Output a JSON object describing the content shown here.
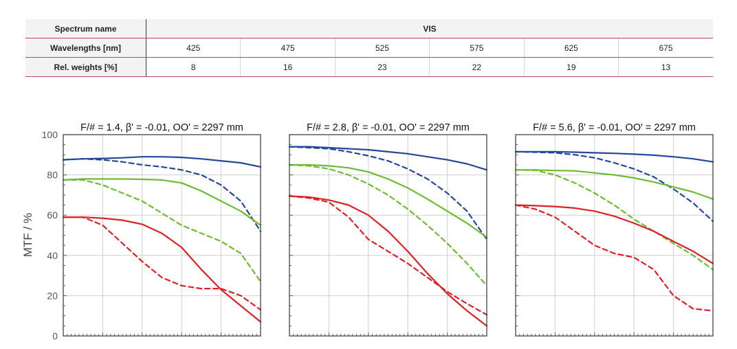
{
  "spectrum_table": {
    "row_labels": {
      "spectrum": "Spectrum name",
      "wavelengths": "Wavelengths [nm]",
      "weights": "Rel. weights [%]"
    },
    "spectrum_value": "VIS",
    "wavelengths": [
      "425",
      "475",
      "525",
      "575",
      "625",
      "675"
    ],
    "weights": [
      "8",
      "16",
      "23",
      "22",
      "19",
      "13"
    ]
  },
  "chart_data": {
    "type": "line",
    "ylabel": "MTF / %",
    "ylim": [
      0,
      100
    ],
    "yticks": [
      "0",
      "20",
      "40",
      "60",
      "80",
      "100"
    ],
    "grid": true,
    "colors": {
      "blue": "#23479a",
      "green": "#6cbb30",
      "red": "#e01f25"
    },
    "panels": [
      {
        "title": "F/# = 1.4, β' = -0.01, OO' = 2297 mm",
        "series": [
          {
            "color": "blue",
            "dash": false,
            "values": [
              [
                0,
                87.5
              ],
              [
                0.1,
                88
              ],
              [
                0.2,
                88.2
              ],
              [
                0.3,
                88.5
              ],
              [
                0.4,
                89
              ],
              [
                0.5,
                89
              ],
              [
                0.6,
                88.7
              ],
              [
                0.7,
                88
              ],
              [
                0.8,
                87
              ],
              [
                0.9,
                86
              ],
              [
                1.0,
                84
              ]
            ]
          },
          {
            "color": "blue",
            "dash": true,
            "values": [
              [
                0,
                87.5
              ],
              [
                0.1,
                88
              ],
              [
                0.2,
                87.5
              ],
              [
                0.3,
                86.5
              ],
              [
                0.4,
                85
              ],
              [
                0.5,
                84
              ],
              [
                0.6,
                82.5
              ],
              [
                0.7,
                80
              ],
              [
                0.8,
                75
              ],
              [
                0.9,
                67
              ],
              [
                1.0,
                52
              ]
            ]
          },
          {
            "color": "green",
            "dash": false,
            "values": [
              [
                0,
                77.5
              ],
              [
                0.1,
                78
              ],
              [
                0.2,
                78
              ],
              [
                0.3,
                78
              ],
              [
                0.4,
                77.8
              ],
              [
                0.5,
                77.5
              ],
              [
                0.6,
                76
              ],
              [
                0.7,
                72
              ],
              [
                0.8,
                67
              ],
              [
                0.9,
                62
              ],
              [
                1.0,
                55
              ]
            ]
          },
          {
            "color": "green",
            "dash": true,
            "values": [
              [
                0,
                77.5
              ],
              [
                0.1,
                77.5
              ],
              [
                0.2,
                75
              ],
              [
                0.3,
                71
              ],
              [
                0.4,
                67
              ],
              [
                0.5,
                61
              ],
              [
                0.6,
                55
              ],
              [
                0.7,
                51
              ],
              [
                0.8,
                47
              ],
              [
                0.9,
                41
              ],
              [
                1.0,
                27
              ]
            ]
          },
          {
            "color": "red",
            "dash": false,
            "values": [
              [
                0,
                59
              ],
              [
                0.1,
                59
              ],
              [
                0.2,
                58.5
              ],
              [
                0.3,
                57.5
              ],
              [
                0.4,
                55.5
              ],
              [
                0.5,
                51
              ],
              [
                0.6,
                44
              ],
              [
                0.7,
                33
              ],
              [
                0.8,
                23
              ],
              [
                0.9,
                15
              ],
              [
                1.0,
                7
              ]
            ]
          },
          {
            "color": "red",
            "dash": true,
            "values": [
              [
                0,
                59
              ],
              [
                0.1,
                59
              ],
              [
                0.2,
                55
              ],
              [
                0.3,
                46
              ],
              [
                0.4,
                37
              ],
              [
                0.5,
                29
              ],
              [
                0.6,
                25
              ],
              [
                0.7,
                23.5
              ],
              [
                0.8,
                23.5
              ],
              [
                0.9,
                20
              ],
              [
                1.0,
                13
              ]
            ]
          }
        ]
      },
      {
        "title": "F/# = 2.8, β' = -0.01, OO' = 2297 mm",
        "series": [
          {
            "color": "blue",
            "dash": false,
            "values": [
              [
                0,
                94
              ],
              [
                0.1,
                94
              ],
              [
                0.2,
                93.5
              ],
              [
                0.3,
                93
              ],
              [
                0.4,
                92.5
              ],
              [
                0.5,
                91.5
              ],
              [
                0.6,
                90.5
              ],
              [
                0.7,
                89
              ],
              [
                0.8,
                87.5
              ],
              [
                0.9,
                85.5
              ],
              [
                1.0,
                82.5
              ]
            ]
          },
          {
            "color": "blue",
            "dash": true,
            "values": [
              [
                0,
                94
              ],
              [
                0.1,
                93.5
              ],
              [
                0.2,
                93
              ],
              [
                0.3,
                91.5
              ],
              [
                0.4,
                89.5
              ],
              [
                0.5,
                87
              ],
              [
                0.6,
                83
              ],
              [
                0.7,
                78
              ],
              [
                0.8,
                71
              ],
              [
                0.9,
                62
              ],
              [
                1.0,
                48
              ]
            ]
          },
          {
            "color": "green",
            "dash": false,
            "values": [
              [
                0,
                85
              ],
              [
                0.1,
                85
              ],
              [
                0.2,
                84.5
              ],
              [
                0.3,
                83.5
              ],
              [
                0.4,
                81.5
              ],
              [
                0.5,
                78
              ],
              [
                0.6,
                73.5
              ],
              [
                0.7,
                68
              ],
              [
                0.8,
                62
              ],
              [
                0.9,
                56
              ],
              [
                1.0,
                49
              ]
            ]
          },
          {
            "color": "green",
            "dash": true,
            "values": [
              [
                0,
                85
              ],
              [
                0.1,
                84.5
              ],
              [
                0.2,
                83
              ],
              [
                0.3,
                80
              ],
              [
                0.4,
                75.5
              ],
              [
                0.5,
                70
              ],
              [
                0.6,
                63
              ],
              [
                0.7,
                55
              ],
              [
                0.8,
                46
              ],
              [
                0.9,
                36
              ],
              [
                1.0,
                25
              ]
            ]
          },
          {
            "color": "red",
            "dash": false,
            "values": [
              [
                0,
                69.5
              ],
              [
                0.1,
                69
              ],
              [
                0.2,
                67.5
              ],
              [
                0.3,
                65
              ],
              [
                0.4,
                60
              ],
              [
                0.5,
                52
              ],
              [
                0.6,
                42
              ],
              [
                0.7,
                31
              ],
              [
                0.8,
                21
              ],
              [
                0.9,
                12.5
              ],
              [
                1.0,
                5
              ]
            ]
          },
          {
            "color": "red",
            "dash": true,
            "values": [
              [
                0,
                69.5
              ],
              [
                0.1,
                68.5
              ],
              [
                0.2,
                66.5
              ],
              [
                0.3,
                59
              ],
              [
                0.4,
                48
              ],
              [
                0.5,
                42
              ],
              [
                0.6,
                36
              ],
              [
                0.7,
                29
              ],
              [
                0.8,
                22
              ],
              [
                0.9,
                16
              ],
              [
                1.0,
                10.5
              ]
            ]
          }
        ]
      },
      {
        "title": "F/# = 5.6, β' = -0.01, OO' = 2297 mm",
        "series": [
          {
            "color": "blue",
            "dash": false,
            "values": [
              [
                0,
                91.5
              ],
              [
                0.1,
                91.5
              ],
              [
                0.2,
                91.5
              ],
              [
                0.3,
                91.3
              ],
              [
                0.4,
                91
              ],
              [
                0.5,
                90.7
              ],
              [
                0.6,
                90.3
              ],
              [
                0.7,
                89.8
              ],
              [
                0.8,
                89
              ],
              [
                0.9,
                88
              ],
              [
                1.0,
                86.5
              ]
            ]
          },
          {
            "color": "blue",
            "dash": true,
            "values": [
              [
                0,
                91.5
              ],
              [
                0.1,
                91.3
              ],
              [
                0.2,
                91
              ],
              [
                0.3,
                90
              ],
              [
                0.4,
                88.5
              ],
              [
                0.5,
                86
              ],
              [
                0.6,
                83
              ],
              [
                0.7,
                79
              ],
              [
                0.8,
                73
              ],
              [
                0.9,
                66
              ],
              [
                1.0,
                57
              ]
            ]
          },
          {
            "color": "green",
            "dash": false,
            "values": [
              [
                0,
                82.5
              ],
              [
                0.1,
                82.5
              ],
              [
                0.2,
                82.2
              ],
              [
                0.3,
                82
              ],
              [
                0.4,
                81
              ],
              [
                0.5,
                80
              ],
              [
                0.6,
                78.5
              ],
              [
                0.7,
                76.5
              ],
              [
                0.8,
                74
              ],
              [
                0.9,
                71.5
              ],
              [
                1.0,
                68
              ]
            ]
          },
          {
            "color": "green",
            "dash": true,
            "values": [
              [
                0,
                82.5
              ],
              [
                0.1,
                82.3
              ],
              [
                0.2,
                80
              ],
              [
                0.3,
                76
              ],
              [
                0.4,
                71
              ],
              [
                0.5,
                65
              ],
              [
                0.6,
                58
              ],
              [
                0.7,
                52
              ],
              [
                0.8,
                46
              ],
              [
                0.9,
                40
              ],
              [
                1.0,
                33
              ]
            ]
          },
          {
            "color": "red",
            "dash": false,
            "values": [
              [
                0,
                65
              ],
              [
                0.1,
                64.7
              ],
              [
                0.2,
                64.3
              ],
              [
                0.3,
                63.5
              ],
              [
                0.4,
                62
              ],
              [
                0.5,
                59.5
              ],
              [
                0.6,
                56
              ],
              [
                0.7,
                52
              ],
              [
                0.8,
                47
              ],
              [
                0.9,
                42
              ],
              [
                1.0,
                36
              ]
            ]
          },
          {
            "color": "red",
            "dash": true,
            "values": [
              [
                0,
                65
              ],
              [
                0.1,
                63
              ],
              [
                0.2,
                59
              ],
              [
                0.3,
                52
              ],
              [
                0.4,
                45
              ],
              [
                0.5,
                41
              ],
              [
                0.6,
                39
              ],
              [
                0.7,
                33
              ],
              [
                0.8,
                20
              ],
              [
                0.9,
                13.5
              ],
              [
                1.0,
                12.5
              ]
            ]
          }
        ]
      }
    ]
  }
}
